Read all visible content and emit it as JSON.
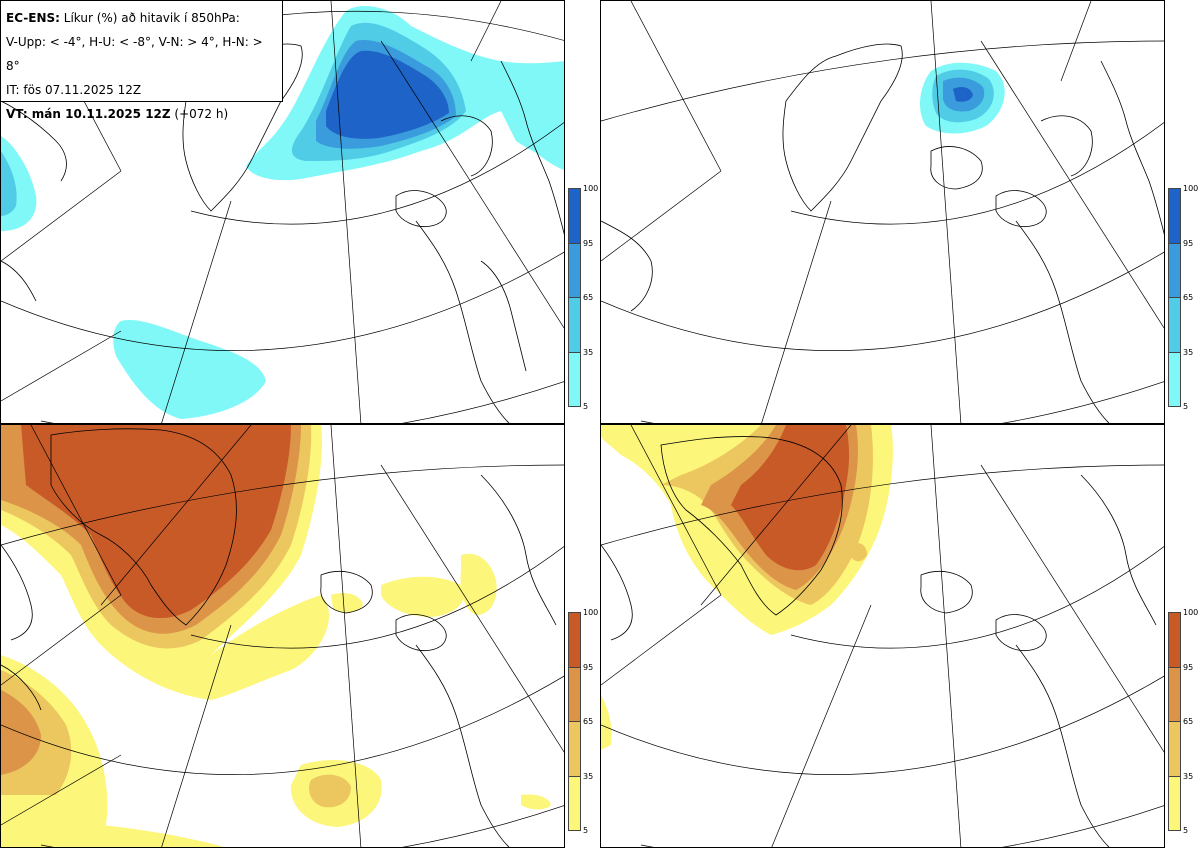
{
  "legend": {
    "title_bold": "EC-ENS:",
    "title_rest": " Líkur (%) að hitavik í 850hPa:",
    "thresholds": "V-Upp: < -4°, H-U: < -8°, V-N: > 4°, H-N: > 8°",
    "initial_time": "IT: fös 07.11.2025 12Z",
    "valid_bold": "VT: mán 10.11.2025 12Z",
    "valid_rest": " (+072 h)"
  },
  "colorbar_ticks": [
    "100",
    "95",
    "65",
    "35",
    "5"
  ],
  "colors": {
    "cold": [
      "#80f8f8",
      "#50cce6",
      "#3a9cdc",
      "#1e64c8"
    ],
    "warm": [
      "#fcf67a",
      "#ecc65e",
      "#dc9448",
      "#c85a28"
    ],
    "coast": "#000000",
    "grid": "#000000"
  },
  "panels": [
    {
      "name": "panel-cold-4",
      "scale": "cold"
    },
    {
      "name": "panel-cold-8",
      "scale": "cold"
    },
    {
      "name": "panel-warm-4",
      "scale": "warm"
    },
    {
      "name": "panel-warm-8",
      "scale": "warm"
    }
  ]
}
